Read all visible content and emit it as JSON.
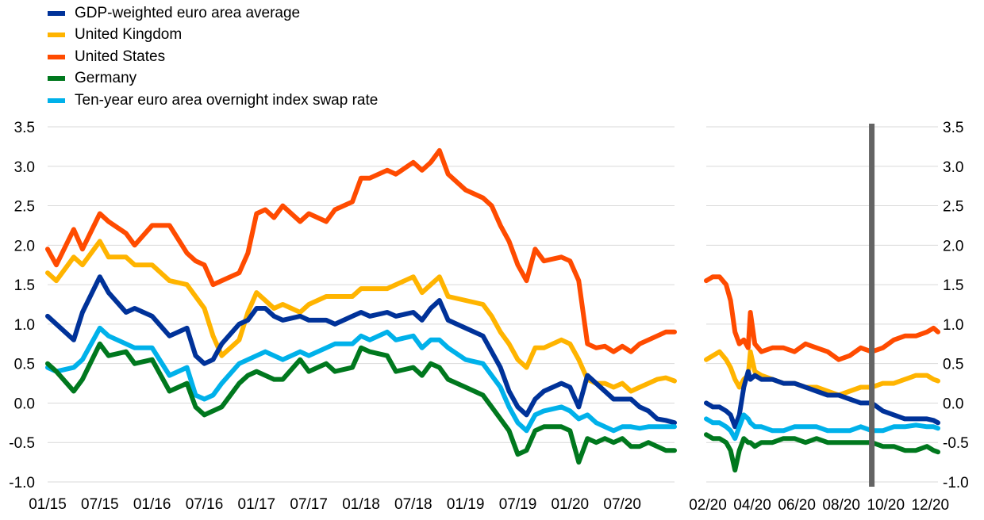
{
  "legend": [
    {
      "label": "GDP-weighted euro area average",
      "color": "#003299"
    },
    {
      "label": "United Kingdom",
      "color": "#FFB400"
    },
    {
      "label": "United States",
      "color": "#FF4B00"
    },
    {
      "label": "Germany",
      "color": "#00781E"
    },
    {
      "label": "Ten-year euro area overnight index swap rate",
      "color": "#00B1EA"
    }
  ],
  "chart_data": [
    {
      "type": "line",
      "x_tick_labels": [
        "01/15",
        "07/15",
        "01/16",
        "07/16",
        "01/17",
        "07/17",
        "01/18",
        "07/18",
        "01/19",
        "07/19",
        "01/20",
        "07/20"
      ],
      "y_tick_labels": [
        "3.5",
        "3.0",
        "2.5",
        "2.0",
        "1.5",
        "1.0",
        "0.5",
        "0.0",
        "-0.5",
        "-1.0"
      ],
      "ylim": [
        -1.0,
        3.5
      ],
      "grid": true,
      "x_unit": "months since 01/15",
      "x_range": [
        0,
        72
      ],
      "series": [
        {
          "name": "United States",
          "color": "#FF4B00",
          "x": [
            0,
            1,
            3,
            4,
            6,
            7,
            9,
            10,
            12,
            14,
            16,
            17,
            18,
            19,
            20,
            22,
            23,
            24,
            25,
            26,
            27,
            29,
            30,
            32,
            33,
            35,
            36,
            37,
            39,
            40,
            42,
            43,
            44,
            45,
            46,
            48,
            50,
            51,
            52,
            53,
            54,
            55,
            56,
            57,
            59,
            60,
            61,
            62,
            63,
            64,
            65,
            66,
            67,
            68,
            69,
            70,
            71,
            72
          ],
          "y": [
            1.95,
            1.75,
            2.2,
            1.95,
            2.4,
            2.3,
            2.15,
            2.0,
            2.25,
            2.25,
            1.9,
            1.8,
            1.75,
            1.5,
            1.55,
            1.65,
            1.9,
            2.4,
            2.45,
            2.35,
            2.5,
            2.3,
            2.4,
            2.3,
            2.45,
            2.55,
            2.85,
            2.85,
            2.95,
            2.9,
            3.05,
            2.95,
            3.05,
            3.2,
            2.9,
            2.7,
            2.6,
            2.5,
            2.25,
            2.05,
            1.75,
            1.55,
            1.95,
            1.8,
            1.85,
            1.8,
            1.55,
            0.75,
            0.7,
            0.72,
            0.65,
            0.72,
            0.65,
            0.75,
            0.8,
            0.85,
            0.9,
            0.9
          ]
        },
        {
          "name": "United Kingdom",
          "color": "#FFB400",
          "x": [
            0,
            1,
            3,
            4,
            6,
            7,
            9,
            10,
            12,
            14,
            16,
            17,
            18,
            19,
            20,
            22,
            23,
            24,
            25,
            26,
            27,
            29,
            30,
            32,
            33,
            35,
            36,
            37,
            39,
            40,
            42,
            43,
            44,
            45,
            46,
            48,
            50,
            51,
            52,
            53,
            54,
            55,
            56,
            57,
            59,
            60,
            61,
            62,
            63,
            64,
            65,
            66,
            67,
            68,
            69,
            70,
            71,
            72
          ],
          "y": [
            1.65,
            1.55,
            1.85,
            1.75,
            2.05,
            1.85,
            1.85,
            1.75,
            1.75,
            1.55,
            1.5,
            1.35,
            1.2,
            0.85,
            0.6,
            0.8,
            1.15,
            1.4,
            1.3,
            1.2,
            1.25,
            1.15,
            1.25,
            1.35,
            1.35,
            1.35,
            1.45,
            1.45,
            1.45,
            1.5,
            1.6,
            1.4,
            1.5,
            1.6,
            1.35,
            1.3,
            1.25,
            1.1,
            0.9,
            0.75,
            0.55,
            0.45,
            0.7,
            0.7,
            0.8,
            0.75,
            0.55,
            0.3,
            0.25,
            0.25,
            0.2,
            0.25,
            0.15,
            0.2,
            0.25,
            0.3,
            0.32,
            0.28
          ]
        },
        {
          "name": "GDP-weighted euro area average",
          "color": "#003299",
          "x": [
            0,
            1,
            3,
            4,
            6,
            7,
            9,
            10,
            12,
            14,
            16,
            17,
            18,
            19,
            20,
            22,
            23,
            24,
            25,
            26,
            27,
            29,
            30,
            32,
            33,
            35,
            36,
            37,
            39,
            40,
            42,
            43,
            44,
            45,
            46,
            48,
            50,
            51,
            52,
            53,
            54,
            55,
            56,
            57,
            59,
            60,
            61,
            62,
            63,
            64,
            65,
            66,
            67,
            68,
            69,
            70,
            71,
            72
          ],
          "y": [
            1.1,
            1.0,
            0.8,
            1.15,
            1.6,
            1.4,
            1.15,
            1.2,
            1.1,
            0.85,
            0.95,
            0.6,
            0.5,
            0.55,
            0.75,
            1.0,
            1.05,
            1.2,
            1.2,
            1.1,
            1.05,
            1.1,
            1.05,
            1.05,
            1.0,
            1.1,
            1.15,
            1.1,
            1.15,
            1.1,
            1.15,
            1.05,
            1.2,
            1.3,
            1.05,
            0.95,
            0.85,
            0.65,
            0.45,
            0.15,
            -0.05,
            -0.15,
            0.05,
            0.15,
            0.25,
            0.2,
            -0.05,
            0.35,
            0.25,
            0.15,
            0.05,
            0.05,
            0.05,
            -0.05,
            -0.1,
            -0.2,
            -0.22,
            -0.25
          ]
        },
        {
          "name": "Ten-year euro area overnight index swap rate",
          "color": "#00B1EA",
          "x": [
            0,
            1,
            3,
            4,
            6,
            7,
            9,
            10,
            12,
            14,
            16,
            17,
            18,
            19,
            20,
            22,
            23,
            24,
            25,
            26,
            27,
            29,
            30,
            32,
            33,
            35,
            36,
            37,
            39,
            40,
            42,
            43,
            44,
            45,
            46,
            48,
            50,
            51,
            52,
            53,
            54,
            55,
            56,
            57,
            59,
            60,
            61,
            62,
            63,
            64,
            65,
            66,
            67,
            68,
            69,
            70,
            71,
            72
          ],
          "y": [
            0.45,
            0.4,
            0.45,
            0.55,
            0.95,
            0.85,
            0.75,
            0.7,
            0.7,
            0.35,
            0.45,
            0.1,
            0.05,
            0.1,
            0.25,
            0.5,
            0.55,
            0.6,
            0.65,
            0.6,
            0.55,
            0.65,
            0.6,
            0.7,
            0.75,
            0.75,
            0.85,
            0.8,
            0.9,
            0.8,
            0.85,
            0.7,
            0.8,
            0.8,
            0.7,
            0.55,
            0.5,
            0.35,
            0.2,
            -0.05,
            -0.25,
            -0.35,
            -0.15,
            -0.1,
            -0.05,
            -0.1,
            -0.2,
            -0.15,
            -0.25,
            -0.3,
            -0.35,
            -0.3,
            -0.3,
            -0.32,
            -0.3,
            -0.3,
            -0.3,
            -0.3
          ]
        },
        {
          "name": "Germany",
          "color": "#00781E",
          "x": [
            0,
            1,
            3,
            4,
            6,
            7,
            9,
            10,
            12,
            14,
            16,
            17,
            18,
            19,
            20,
            22,
            23,
            24,
            25,
            26,
            27,
            29,
            30,
            32,
            33,
            35,
            36,
            37,
            39,
            40,
            42,
            43,
            44,
            45,
            46,
            48,
            50,
            51,
            52,
            53,
            54,
            55,
            56,
            57,
            59,
            60,
            61,
            62,
            63,
            64,
            65,
            66,
            67,
            68,
            69,
            70,
            71,
            72
          ],
          "y": [
            0.5,
            0.4,
            0.15,
            0.3,
            0.75,
            0.6,
            0.65,
            0.5,
            0.55,
            0.15,
            0.25,
            -0.05,
            -0.15,
            -0.1,
            -0.05,
            0.25,
            0.35,
            0.4,
            0.35,
            0.3,
            0.3,
            0.55,
            0.4,
            0.5,
            0.4,
            0.45,
            0.7,
            0.65,
            0.6,
            0.4,
            0.45,
            0.35,
            0.5,
            0.45,
            0.3,
            0.2,
            0.1,
            -0.05,
            -0.2,
            -0.35,
            -0.65,
            -0.6,
            -0.35,
            -0.3,
            -0.3,
            -0.35,
            -0.75,
            -0.45,
            -0.5,
            -0.45,
            -0.5,
            -0.45,
            -0.55,
            -0.55,
            -0.5,
            -0.55,
            -0.6,
            -0.6
          ]
        }
      ]
    },
    {
      "type": "line",
      "x_tick_labels": [
        "02/20",
        "04/20",
        "06/20",
        "08/20",
        "10/20",
        "12/20"
      ],
      "y_tick_labels": [
        "3.5",
        "3.0",
        "2.5",
        "2.0",
        "1.5",
        "1.0",
        "0.5",
        "0.0",
        "-0.5",
        "-1.0"
      ],
      "ylim": [
        -1.0,
        3.5
      ],
      "grid": true,
      "x_unit": "months since 02/20",
      "x_range": [
        0,
        10.5
      ],
      "vertical_line": {
        "x": 7.5,
        "color": "#646464"
      },
      "series": [
        {
          "name": "United States",
          "color": "#FF4B00",
          "x": [
            0,
            0.3,
            0.6,
            0.9,
            1.1,
            1.3,
            1.5,
            1.7,
            1.9,
            2.0,
            2.2,
            2.5,
            3,
            3.5,
            4,
            4.5,
            5,
            5.5,
            6,
            6.5,
            7,
            7.5,
            8,
            8.5,
            9,
            9.5,
            10,
            10.3,
            10.5
          ],
          "y": [
            1.55,
            1.6,
            1.6,
            1.5,
            1.3,
            0.9,
            0.75,
            0.8,
            0.7,
            1.15,
            0.75,
            0.65,
            0.7,
            0.7,
            0.65,
            0.75,
            0.7,
            0.65,
            0.55,
            0.6,
            0.7,
            0.65,
            0.7,
            0.8,
            0.85,
            0.85,
            0.9,
            0.95,
            0.9
          ]
        },
        {
          "name": "United Kingdom",
          "color": "#FFB400",
          "x": [
            0,
            0.3,
            0.6,
            0.9,
            1.1,
            1.3,
            1.5,
            1.7,
            1.9,
            2.0,
            2.2,
            2.5,
            3,
            3.5,
            4,
            4.5,
            5,
            5.5,
            6,
            6.5,
            7,
            7.5,
            8,
            8.5,
            9,
            9.5,
            10,
            10.3,
            10.5
          ],
          "y": [
            0.55,
            0.6,
            0.65,
            0.55,
            0.45,
            0.3,
            0.2,
            0.3,
            0.35,
            0.65,
            0.4,
            0.35,
            0.3,
            0.25,
            0.25,
            0.2,
            0.2,
            0.15,
            0.1,
            0.15,
            0.2,
            0.2,
            0.25,
            0.25,
            0.3,
            0.35,
            0.35,
            0.3,
            0.28
          ]
        },
        {
          "name": "GDP-weighted euro area average",
          "color": "#003299",
          "x": [
            0,
            0.3,
            0.6,
            0.9,
            1.1,
            1.3,
            1.5,
            1.7,
            1.9,
            2.0,
            2.2,
            2.5,
            3,
            3.5,
            4,
            4.5,
            5,
            5.5,
            6,
            6.5,
            7,
            7.5,
            8,
            8.5,
            9,
            9.5,
            10,
            10.3,
            10.5
          ],
          "y": [
            0.0,
            -0.05,
            -0.05,
            -0.1,
            -0.15,
            -0.3,
            -0.15,
            0.2,
            0.4,
            0.3,
            0.35,
            0.3,
            0.3,
            0.25,
            0.25,
            0.2,
            0.15,
            0.1,
            0.1,
            0.05,
            0.0,
            0.0,
            -0.1,
            -0.15,
            -0.2,
            -0.2,
            -0.2,
            -0.22,
            -0.25
          ]
        },
        {
          "name": "Ten-year euro area overnight index swap rate",
          "color": "#00B1EA",
          "x": [
            0,
            0.3,
            0.6,
            0.9,
            1.1,
            1.3,
            1.5,
            1.7,
            1.9,
            2.0,
            2.2,
            2.5,
            3,
            3.5,
            4,
            4.5,
            5,
            5.5,
            6,
            6.5,
            7,
            7.5,
            8,
            8.5,
            9,
            9.5,
            10,
            10.3,
            10.5
          ],
          "y": [
            -0.2,
            -0.25,
            -0.25,
            -0.3,
            -0.35,
            -0.45,
            -0.3,
            -0.15,
            -0.2,
            -0.25,
            -0.3,
            -0.3,
            -0.35,
            -0.35,
            -0.3,
            -0.3,
            -0.3,
            -0.35,
            -0.35,
            -0.35,
            -0.3,
            -0.35,
            -0.35,
            -0.3,
            -0.3,
            -0.28,
            -0.3,
            -0.3,
            -0.32
          ]
        },
        {
          "name": "Germany",
          "color": "#00781E",
          "x": [
            0,
            0.3,
            0.6,
            0.9,
            1.1,
            1.3,
            1.5,
            1.7,
            1.9,
            2.0,
            2.2,
            2.5,
            3,
            3.5,
            4,
            4.5,
            5,
            5.5,
            6,
            6.5,
            7,
            7.5,
            8,
            8.5,
            9,
            9.5,
            10,
            10.3,
            10.5
          ],
          "y": [
            -0.4,
            -0.45,
            -0.45,
            -0.5,
            -0.6,
            -0.85,
            -0.6,
            -0.45,
            -0.5,
            -0.5,
            -0.55,
            -0.5,
            -0.5,
            -0.45,
            -0.45,
            -0.5,
            -0.45,
            -0.5,
            -0.5,
            -0.5,
            -0.5,
            -0.5,
            -0.55,
            -0.55,
            -0.6,
            -0.6,
            -0.55,
            -0.6,
            -0.62
          ]
        }
      ]
    }
  ]
}
